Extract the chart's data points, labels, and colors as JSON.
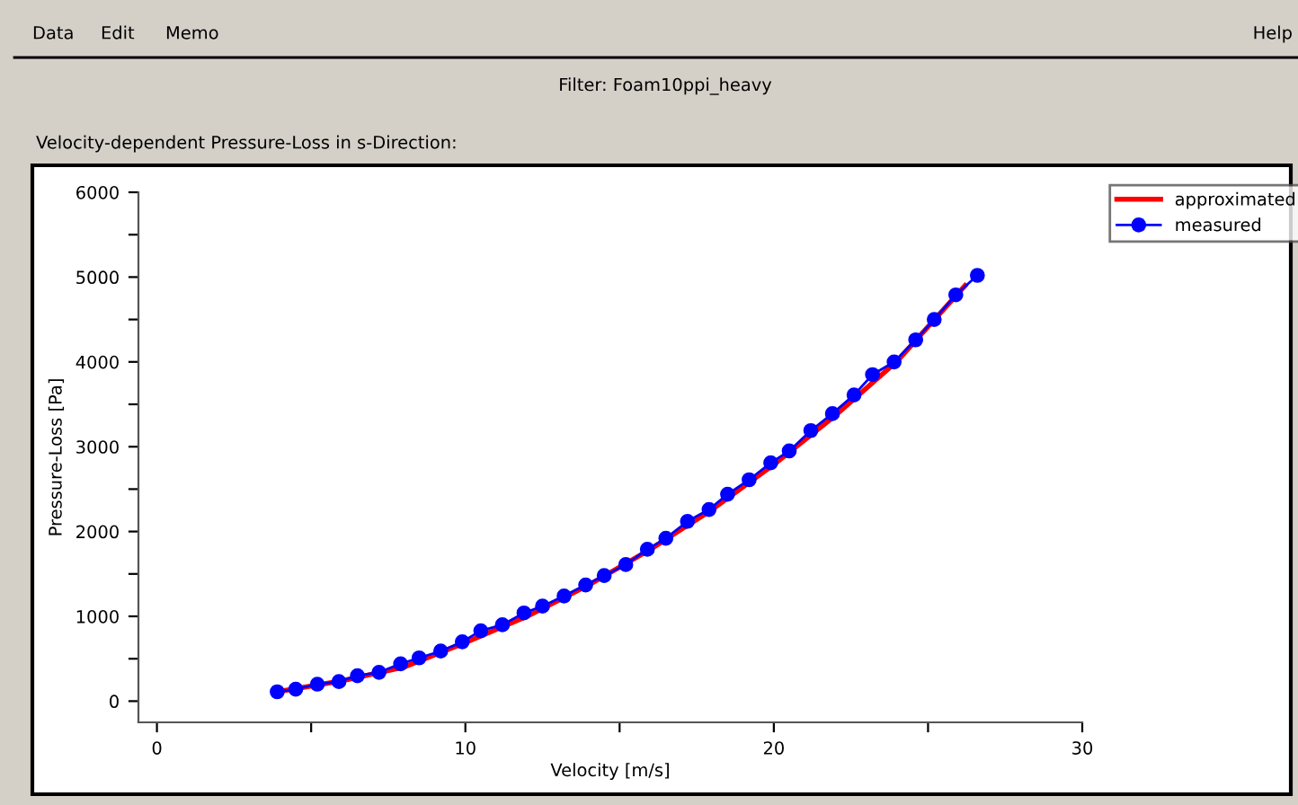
{
  "chart_data": {
    "type": "line",
    "title": "Filter: Foam10ppi_heavy",
    "subtitle": "Velocity-dependent Pressure-Loss in s-Direction:",
    "xlabel": "Velocity [m/s]",
    "ylabel": "Pressure-Loss [Pa]",
    "annotations": [
      "Data",
      "Edit",
      "Memo",
      "Help"
    ],
    "series": [
      {
        "name": "approximated",
        "color": "#ff0000",
        "marker": "none",
        "x": [
          3.9,
          6,
          8,
          10,
          12,
          14,
          16,
          18,
          20,
          22,
          24,
          26.2
        ],
        "values": [
          110,
          240,
          400,
          690,
          1000,
          1370,
          1790,
          2260,
          2790,
          3370,
          4010,
          4900
        ]
      },
      {
        "name": "measured",
        "color": "#0000ff",
        "marker": "circle",
        "x": [
          3.9,
          4.5,
          5.2,
          5.9,
          6.5,
          7.2,
          7.9,
          8.5,
          9.2,
          9.9,
          10.5,
          11.2,
          11.9,
          12.5,
          13.2,
          13.9,
          14.5,
          15.2,
          15.9,
          16.5,
          17.2,
          17.9,
          18.5,
          19.2,
          19.9,
          20.5,
          21.2,
          21.9,
          22.6,
          23.2,
          23.9,
          24.6,
          25.2,
          25.9,
          26.6
        ],
        "values": [
          110,
          140,
          200,
          230,
          300,
          340,
          440,
          510,
          590,
          700,
          830,
          900,
          1040,
          1120,
          1240,
          1370,
          1480,
          1610,
          1790,
          1920,
          2120,
          2260,
          2440,
          2610,
          2810,
          2950,
          3190,
          3390,
          3610,
          3850,
          4000,
          4260,
          4500,
          4790,
          5020
        ]
      }
    ],
    "xlim": [
      -0.6,
      30
    ],
    "ylim": [
      -250,
      6000
    ],
    "xticks": [
      0,
      {
        "value": 5,
        "label": null
      },
      10,
      {
        "value": 15,
        "label": null
      },
      20,
      {
        "value": 25,
        "label": null
      },
      30
    ],
    "yticks": [
      0,
      {
        "value": 500,
        "label": null
      },
      1000,
      {
        "value": 1500,
        "label": null
      },
      2000,
      {
        "value": 2500,
        "label": null
      },
      3000,
      {
        "value": 3500,
        "label": null
      },
      4000,
      {
        "value": 4500,
        "label": null
      },
      5000,
      {
        "value": 5500,
        "label": null
      },
      6000
    ],
    "grid": false,
    "legend": "top right",
    "line_style": "solid"
  }
}
